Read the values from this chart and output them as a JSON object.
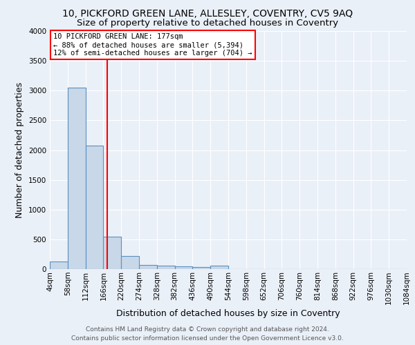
{
  "title": "10, PICKFORD GREEN LANE, ALLESLEY, COVENTRY, CV5 9AQ",
  "subtitle": "Size of property relative to detached houses in Coventry",
  "xlabel": "Distribution of detached houses by size in Coventry",
  "ylabel": "Number of detached properties",
  "footer_line1": "Contains HM Land Registry data © Crown copyright and database right 2024.",
  "footer_line2": "Contains public sector information licensed under the Open Government Licence v3.0.",
  "bin_edges": [
    4,
    58,
    112,
    166,
    220,
    274,
    328,
    382,
    436,
    490,
    544,
    598,
    652,
    706,
    760,
    814,
    868,
    922,
    976,
    1030,
    1084
  ],
  "bar_heights": [
    130,
    3050,
    2080,
    540,
    215,
    75,
    55,
    45,
    40,
    55,
    0,
    0,
    0,
    0,
    0,
    0,
    0,
    0,
    0,
    0
  ],
  "bar_color": "#c8d8e8",
  "bar_edge_color": "#5a8fc0",
  "vline_x": 177,
  "vline_color": "red",
  "annotation_line1": "10 PICKFORD GREEN LANE: 177sqm",
  "annotation_line2": "← 88% of detached houses are smaller (5,394)",
  "annotation_line3": "12% of semi-detached houses are larger (704) →",
  "annotation_box_color": "white",
  "annotation_box_edge": "red",
  "ylim": [
    0,
    4000
  ],
  "yticks": [
    0,
    500,
    1000,
    1500,
    2000,
    2500,
    3000,
    3500,
    4000
  ],
  "background_color": "#eaf0f8",
  "grid_color": "white",
  "title_fontsize": 10,
  "subtitle_fontsize": 9.5,
  "axis_label_fontsize": 9,
  "tick_fontsize": 7.5,
  "annotation_fontsize": 7.5,
  "footer_fontsize": 6.5
}
